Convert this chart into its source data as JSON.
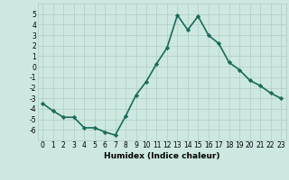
{
  "x": [
    0,
    1,
    2,
    3,
    4,
    5,
    6,
    7,
    8,
    9,
    10,
    11,
    12,
    13,
    14,
    15,
    16,
    17,
    18,
    19,
    20,
    21,
    22,
    23
  ],
  "y": [
    -3.5,
    -4.2,
    -4.8,
    -4.8,
    -5.8,
    -5.8,
    -6.2,
    -6.5,
    -4.7,
    -2.7,
    -1.4,
    0.3,
    1.8,
    4.9,
    3.5,
    4.8,
    3.0,
    2.2,
    0.4,
    -0.3,
    -1.3,
    -1.8,
    -2.5,
    -3.0
  ],
  "line_color": "#1a6b5a",
  "marker": "D",
  "marker_size": 2.2,
  "xlabel": "Humidex (Indice chaleur)",
  "xlim": [
    -0.5,
    23.5
  ],
  "ylim": [
    -7,
    6
  ],
  "yticks": [
    -6,
    -5,
    -4,
    -3,
    -2,
    -1,
    0,
    1,
    2,
    3,
    4,
    5
  ],
  "xticks": [
    0,
    1,
    2,
    3,
    4,
    5,
    6,
    7,
    8,
    9,
    10,
    11,
    12,
    13,
    14,
    15,
    16,
    17,
    18,
    19,
    20,
    21,
    22,
    23
  ],
  "bg_color": "#cce8e0",
  "grid_color": "#b0ccc6",
  "line_width": 1.2,
  "tick_fontsize": 5.5,
  "xlabel_fontsize": 6.5
}
